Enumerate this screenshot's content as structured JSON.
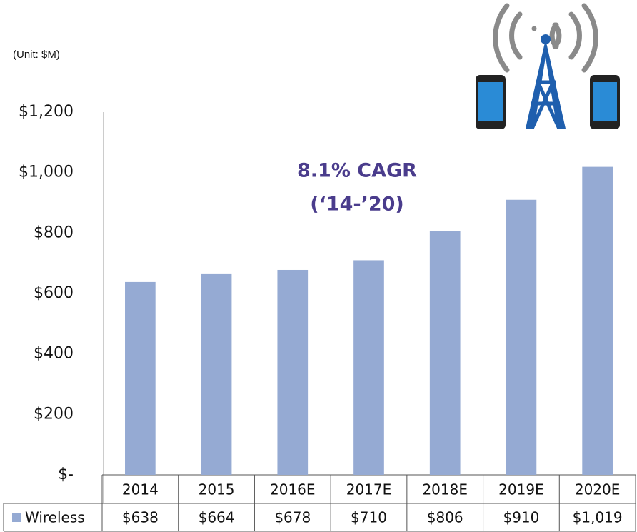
{
  "chart_data": {
    "type": "bar",
    "unit_label": "(Unit: $M)",
    "annotations": [
      "8.1% CAGR",
      "(‘14-’20)"
    ],
    "categories": [
      "2014",
      "2015",
      "2016E",
      "2017E",
      "2018E",
      "2019E",
      "2020E"
    ],
    "series": [
      {
        "name": "Wireless",
        "color": "#95aad3",
        "values": [
          638,
          664,
          678,
          710,
          806,
          910,
          1019
        ],
        "value_labels": [
          "$638",
          "$664",
          "$678",
          "$710",
          "$806",
          "$910",
          "$1,019"
        ]
      }
    ],
    "ylim": [
      0,
      1200
    ],
    "yticks": [
      {
        "value": 0,
        "label": "$-"
      },
      {
        "value": 200,
        "label": "$200"
      },
      {
        "value": 400,
        "label": "$400"
      },
      {
        "value": 600,
        "label": "$600"
      },
      {
        "value": 800,
        "label": "$800"
      },
      {
        "value": 1000,
        "label": "$1,000"
      },
      {
        "value": 1200,
        "label": "$1,200"
      }
    ],
    "grid": false
  }
}
